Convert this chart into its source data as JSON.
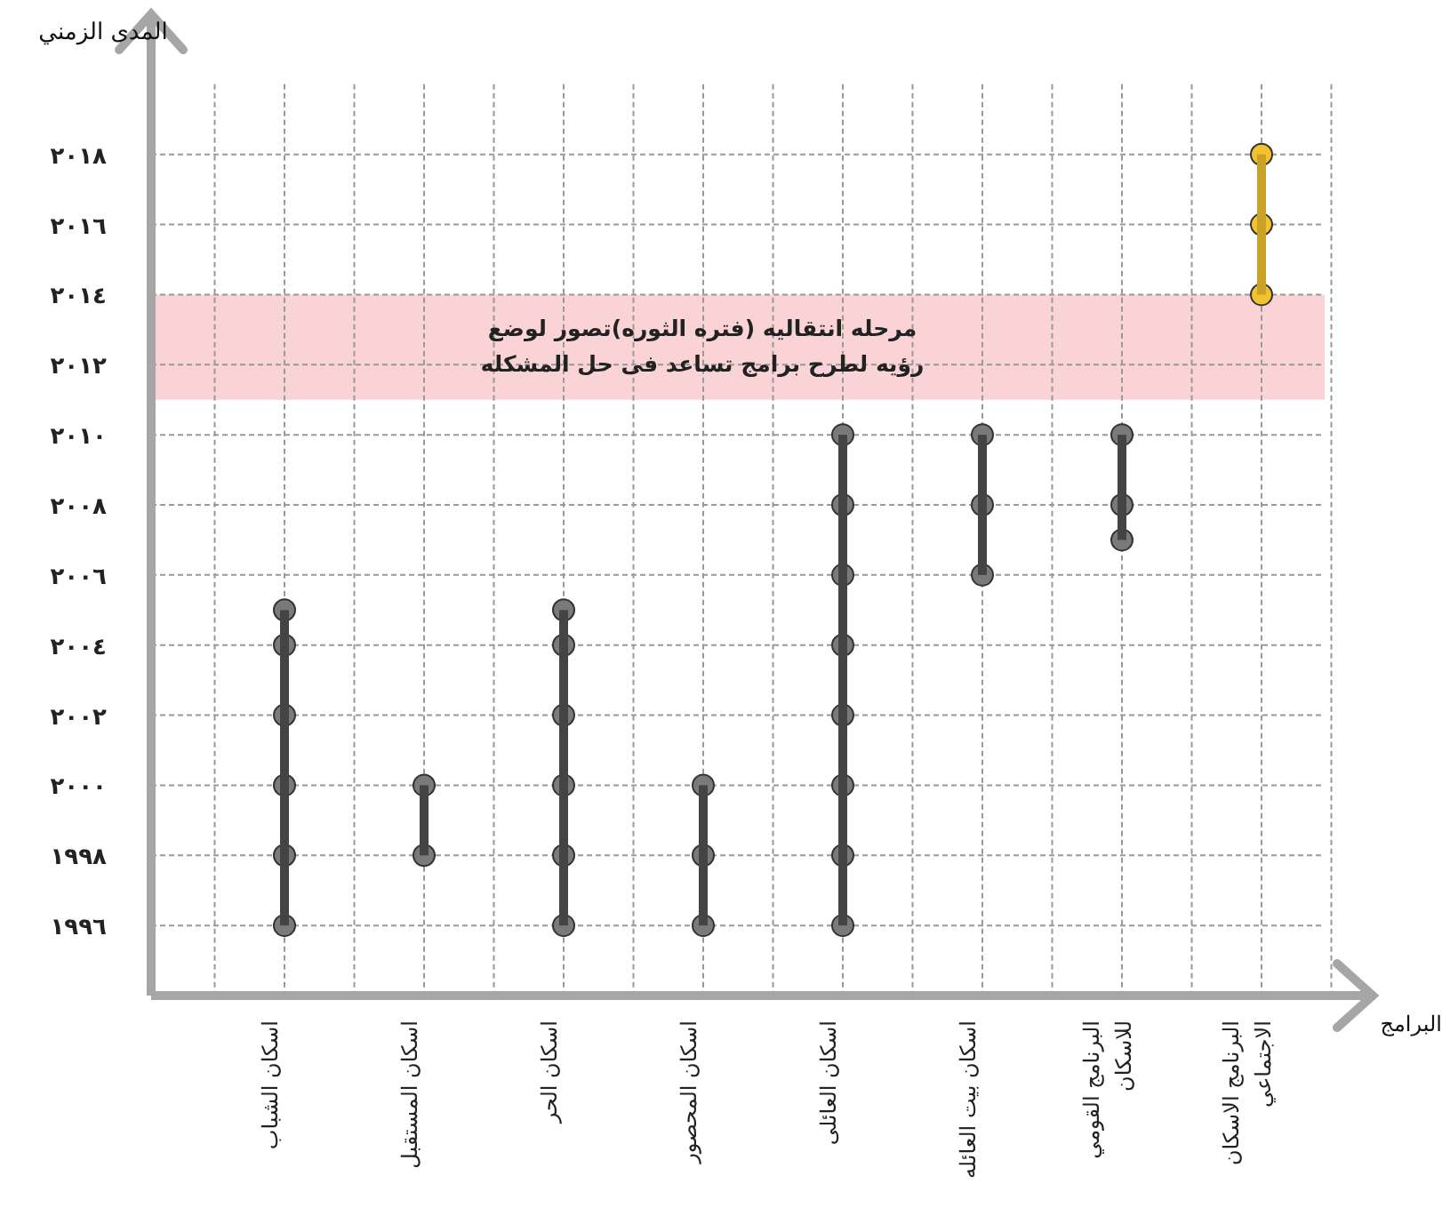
{
  "chart_data": {
    "type": "bar",
    "ylabel": "المدى الزمني",
    "xlabel": "البرامج",
    "categories": [
      "اسكان الشباب",
      "اسكان المستقبل",
      "اسكان الحر",
      "اسكان المحصور",
      "اسكان العائلى",
      "اسكان بيت العائله",
      "البرنامج القومي للاسكان",
      "البرنامج الاسكان الاجتماعي"
    ],
    "series": [
      {
        "base": [
          1996,
          1998,
          1996,
          1996,
          1996,
          2006,
          2007,
          2014
        ],
        "values": [
          9,
          2,
          9,
          4,
          14,
          4,
          3,
          4
        ],
        "colors": [
          "#444444",
          "#444444",
          "#444444",
          "#444444",
          "#444444",
          "#444444",
          "#444444",
          "#c9a227"
        ]
      },
      {
        "type": "scatter",
        "color": "#7a7a7a",
        "x": [
          "اسكان الشباب",
          "اسكان الشباب",
          "اسكان الشباب",
          "اسكان الشباب",
          "اسكان الشباب",
          "اسكان الشباب",
          "اسكان المستقبل",
          "اسكان المستقبل",
          "اسكان الحر",
          "اسكان الحر",
          "اسكان الحر",
          "اسكان الحر",
          "اسكان الحر",
          "اسكان الحر",
          "اسكان المحصور",
          "اسكان المحصور",
          "اسكان المحصور",
          "اسكان العائلى",
          "اسكان العائلى",
          "اسكان العائلى",
          "اسكان العائلى",
          "اسكان العائلى",
          "اسكان العائلى",
          "اسكان العائلى",
          "اسكان العائلى",
          "اسكان بيت العائله",
          "اسكان بيت العائله",
          "اسكان بيت العائله",
          "البرنامج القومي للاسكان",
          "البرنامج القومي للاسكان",
          "البرنامج القومي للاسكان"
        ],
        "values": [
          1996,
          1998,
          2000,
          2002,
          2004,
          2005,
          1998,
          2000,
          1996,
          1998,
          2000,
          2002,
          2004,
          2005,
          1996,
          1998,
          2000,
          1996,
          1998,
          2000,
          2002,
          2004,
          2006,
          2008,
          2010,
          2006,
          2008,
          2010,
          2007,
          2008,
          2010
        ]
      },
      {
        "type": "scatter",
        "color": "#f2c230",
        "x": [
          "البرنامج الاسكان الاجتماعي",
          "البرنامج الاسكان الاجتماعي",
          "البرنامج الاسكان الاجتماعي"
        ],
        "values": [
          2014,
          2016,
          2018
        ]
      }
    ],
    "ylim": [
      1994,
      2022
    ],
    "yticks": [
      {
        "value": 1996,
        "label": "١٩٩٦"
      },
      {
        "value": 1998,
        "label": "١٩٩٨"
      },
      {
        "value": 2000,
        "label": "٢٠٠٠"
      },
      {
        "value": 2002,
        "label": "٢٠٠٢"
      },
      {
        "value": 2004,
        "label": "٢٠٠٤"
      },
      {
        "value": 2006,
        "label": "٢٠٠٦"
      },
      {
        "value": 2008,
        "label": "٢٠٠٨"
      },
      {
        "value": 2010,
        "label": "٢٠١٠"
      },
      {
        "value": 2012,
        "label": "٢٠١٢"
      },
      {
        "value": 2014,
        "label": "٢٠١٤"
      },
      {
        "value": 2016,
        "label": "٢٠١٦"
      },
      {
        "value": 2018,
        "label": "٢٠١٨"
      }
    ],
    "bands": [
      {
        "axis": "y",
        "from": 2011,
        "to": 2014,
        "color": "#f9d3d6",
        "label": "مرحله انتقاليه (فتره الثوره)تصور لوضع رؤيه لطرح برامج تساعد فى حل المشكله"
      }
    ],
    "grid": true,
    "marker": "circle"
  }
}
